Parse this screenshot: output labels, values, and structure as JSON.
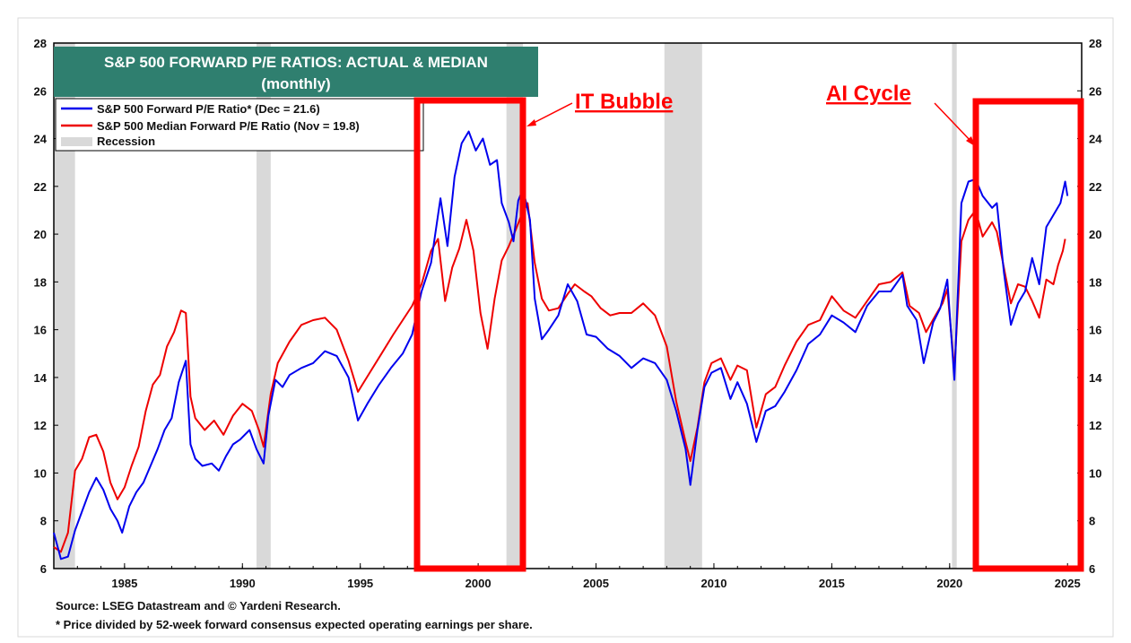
{
  "chart_data": {
    "type": "line",
    "title": "S&P 500 FORWARD P/E RATIOS: ACTUAL & MEDIAN",
    "subtitle": "(monthly)",
    "x_range": [
      1982,
      2025.6
    ],
    "ylim": [
      6,
      28
    ],
    "y_ticks": [
      "6",
      "8",
      "10",
      "12",
      "14",
      "16",
      "18",
      "20",
      "22",
      "24",
      "26",
      "28"
    ],
    "x_ticks": [
      "1985",
      "1990",
      "1995",
      "2000",
      "2005",
      "2010",
      "2015",
      "2020",
      "2025"
    ],
    "grid": false,
    "legend_position": "top-left",
    "series": [
      {
        "name": "S&P 500 Forward P/E Ratio* (Dec = 21.6)",
        "color": "#0000ee",
        "points": [
          [
            1982.0,
            7.5
          ],
          [
            1982.3,
            6.4
          ],
          [
            1982.6,
            6.5
          ],
          [
            1982.9,
            7.6
          ],
          [
            1983.2,
            8.4
          ],
          [
            1983.5,
            9.2
          ],
          [
            1983.8,
            9.8
          ],
          [
            1984.1,
            9.3
          ],
          [
            1984.4,
            8.5
          ],
          [
            1984.7,
            8.0
          ],
          [
            1984.9,
            7.5
          ],
          [
            1985.2,
            8.6
          ],
          [
            1985.5,
            9.2
          ],
          [
            1985.8,
            9.6
          ],
          [
            1986.1,
            10.3
          ],
          [
            1986.4,
            11.0
          ],
          [
            1986.7,
            11.8
          ],
          [
            1987.0,
            12.3
          ],
          [
            1987.3,
            13.8
          ],
          [
            1987.6,
            14.7
          ],
          [
            1987.8,
            11.2
          ],
          [
            1988.0,
            10.6
          ],
          [
            1988.3,
            10.3
          ],
          [
            1988.7,
            10.4
          ],
          [
            1989.0,
            10.1
          ],
          [
            1989.3,
            10.7
          ],
          [
            1989.6,
            11.2
          ],
          [
            1989.9,
            11.4
          ],
          [
            1990.3,
            11.8
          ],
          [
            1990.6,
            11.0
          ],
          [
            1990.9,
            10.4
          ],
          [
            1991.1,
            12.4
          ],
          [
            1991.4,
            13.9
          ],
          [
            1991.7,
            13.6
          ],
          [
            1992.0,
            14.1
          ],
          [
            1992.5,
            14.4
          ],
          [
            1993.0,
            14.6
          ],
          [
            1993.5,
            15.1
          ],
          [
            1994.0,
            14.9
          ],
          [
            1994.5,
            14.0
          ],
          [
            1994.9,
            12.2
          ],
          [
            1995.3,
            12.9
          ],
          [
            1995.8,
            13.7
          ],
          [
            1996.3,
            14.4
          ],
          [
            1996.8,
            15.0
          ],
          [
            1997.2,
            15.8
          ],
          [
            1997.6,
            17.6
          ],
          [
            1998.0,
            18.8
          ],
          [
            1998.4,
            21.5
          ],
          [
            1998.7,
            19.5
          ],
          [
            1999.0,
            22.4
          ],
          [
            1999.3,
            23.8
          ],
          [
            1999.6,
            24.3
          ],
          [
            1999.9,
            23.5
          ],
          [
            2000.2,
            24.0
          ],
          [
            2000.5,
            22.9
          ],
          [
            2000.8,
            23.1
          ],
          [
            2001.0,
            21.3
          ],
          [
            2001.3,
            20.5
          ],
          [
            2001.5,
            19.7
          ],
          [
            2001.7,
            21.4
          ],
          [
            2001.9,
            21.9
          ],
          [
            2002.2,
            20.6
          ],
          [
            2002.4,
            17.3
          ],
          [
            2002.7,
            15.6
          ],
          [
            2003.0,
            16.0
          ],
          [
            2003.4,
            16.6
          ],
          [
            2003.8,
            17.9
          ],
          [
            2004.2,
            17.2
          ],
          [
            2004.6,
            15.8
          ],
          [
            2005.0,
            15.7
          ],
          [
            2005.5,
            15.2
          ],
          [
            2006.0,
            14.9
          ],
          [
            2006.5,
            14.4
          ],
          [
            2007.0,
            14.8
          ],
          [
            2007.5,
            14.6
          ],
          [
            2008.0,
            13.9
          ],
          [
            2008.4,
            12.6
          ],
          [
            2008.8,
            11.0
          ],
          [
            2009.0,
            9.5
          ],
          [
            2009.3,
            11.8
          ],
          [
            2009.6,
            13.6
          ],
          [
            2009.9,
            14.2
          ],
          [
            2010.3,
            14.4
          ],
          [
            2010.7,
            13.1
          ],
          [
            2011.0,
            13.8
          ],
          [
            2011.4,
            12.9
          ],
          [
            2011.8,
            11.3
          ],
          [
            2012.2,
            12.6
          ],
          [
            2012.6,
            12.8
          ],
          [
            2013.0,
            13.4
          ],
          [
            2013.5,
            14.3
          ],
          [
            2014.0,
            15.4
          ],
          [
            2014.5,
            15.8
          ],
          [
            2015.0,
            16.6
          ],
          [
            2015.5,
            16.3
          ],
          [
            2016.0,
            15.9
          ],
          [
            2016.5,
            17.0
          ],
          [
            2017.0,
            17.6
          ],
          [
            2017.5,
            17.6
          ],
          [
            2018.0,
            18.3
          ],
          [
            2018.2,
            17.0
          ],
          [
            2018.6,
            16.4
          ],
          [
            2018.9,
            14.6
          ],
          [
            2019.3,
            16.3
          ],
          [
            2019.6,
            16.9
          ],
          [
            2019.9,
            18.1
          ],
          [
            2020.2,
            13.9
          ],
          [
            2020.5,
            21.3
          ],
          [
            2020.8,
            22.2
          ],
          [
            2021.1,
            22.3
          ],
          [
            2021.4,
            21.6
          ],
          [
            2021.8,
            21.1
          ],
          [
            2022.0,
            21.3
          ],
          [
            2022.3,
            18.4
          ],
          [
            2022.6,
            16.2
          ],
          [
            2022.9,
            17.1
          ],
          [
            2023.2,
            17.6
          ],
          [
            2023.5,
            19.0
          ],
          [
            2023.8,
            17.9
          ],
          [
            2024.1,
            20.3
          ],
          [
            2024.4,
            20.8
          ],
          [
            2024.7,
            21.3
          ],
          [
            2024.9,
            22.2
          ],
          [
            2025.0,
            21.6
          ]
        ]
      },
      {
        "name": "S&P 500 Median Forward P/E Ratio  (Nov = 19.8)",
        "color": "#ee0000",
        "points": [
          [
            1982.0,
            6.9
          ],
          [
            1982.3,
            6.7
          ],
          [
            1982.6,
            7.5
          ],
          [
            1982.9,
            10.1
          ],
          [
            1983.2,
            10.6
          ],
          [
            1983.5,
            11.5
          ],
          [
            1983.8,
            11.6
          ],
          [
            1984.1,
            10.9
          ],
          [
            1984.4,
            9.6
          ],
          [
            1984.7,
            8.9
          ],
          [
            1985.0,
            9.4
          ],
          [
            1985.3,
            10.3
          ],
          [
            1985.6,
            11.1
          ],
          [
            1985.9,
            12.6
          ],
          [
            1986.2,
            13.7
          ],
          [
            1986.5,
            14.1
          ],
          [
            1986.8,
            15.3
          ],
          [
            1987.1,
            15.9
          ],
          [
            1987.4,
            16.8
          ],
          [
            1987.6,
            16.7
          ],
          [
            1987.8,
            13.2
          ],
          [
            1988.0,
            12.3
          ],
          [
            1988.4,
            11.8
          ],
          [
            1988.8,
            12.2
          ],
          [
            1989.2,
            11.6
          ],
          [
            1989.6,
            12.4
          ],
          [
            1990.0,
            12.9
          ],
          [
            1990.4,
            12.6
          ],
          [
            1990.7,
            11.8
          ],
          [
            1990.9,
            11.1
          ],
          [
            1991.2,
            13.3
          ],
          [
            1991.5,
            14.6
          ],
          [
            1992.0,
            15.5
          ],
          [
            1992.5,
            16.2
          ],
          [
            1993.0,
            16.4
          ],
          [
            1993.5,
            16.5
          ],
          [
            1994.0,
            16.0
          ],
          [
            1994.5,
            14.7
          ],
          [
            1994.9,
            13.4
          ],
          [
            1995.4,
            14.2
          ],
          [
            1995.9,
            15.0
          ],
          [
            1996.4,
            15.8
          ],
          [
            1996.8,
            16.4
          ],
          [
            1997.2,
            17.0
          ],
          [
            1997.6,
            17.9
          ],
          [
            1998.0,
            19.3
          ],
          [
            1998.3,
            19.8
          ],
          [
            1998.6,
            17.2
          ],
          [
            1998.9,
            18.6
          ],
          [
            1999.2,
            19.4
          ],
          [
            1999.5,
            20.6
          ],
          [
            1999.8,
            19.3
          ],
          [
            2000.1,
            16.7
          ],
          [
            2000.4,
            15.2
          ],
          [
            2000.7,
            17.3
          ],
          [
            2001.0,
            18.9
          ],
          [
            2001.3,
            19.5
          ],
          [
            2001.6,
            20.2
          ],
          [
            2001.8,
            20.7
          ],
          [
            2002.1,
            21.3
          ],
          [
            2002.4,
            18.8
          ],
          [
            2002.7,
            17.3
          ],
          [
            2003.0,
            16.8
          ],
          [
            2003.4,
            16.9
          ],
          [
            2003.8,
            17.5
          ],
          [
            2004.1,
            17.9
          ],
          [
            2004.5,
            17.6
          ],
          [
            2004.8,
            17.4
          ],
          [
            2005.2,
            16.9
          ],
          [
            2005.6,
            16.6
          ],
          [
            2006.0,
            16.7
          ],
          [
            2006.5,
            16.7
          ],
          [
            2007.0,
            17.1
          ],
          [
            2007.5,
            16.6
          ],
          [
            2008.0,
            15.3
          ],
          [
            2008.4,
            13.0
          ],
          [
            2008.8,
            11.3
          ],
          [
            2009.0,
            10.5
          ],
          [
            2009.3,
            11.9
          ],
          [
            2009.6,
            13.8
          ],
          [
            2009.9,
            14.6
          ],
          [
            2010.3,
            14.8
          ],
          [
            2010.7,
            13.9
          ],
          [
            2011.0,
            14.5
          ],
          [
            2011.4,
            14.3
          ],
          [
            2011.8,
            11.9
          ],
          [
            2012.2,
            13.3
          ],
          [
            2012.6,
            13.6
          ],
          [
            2013.0,
            14.5
          ],
          [
            2013.5,
            15.5
          ],
          [
            2014.0,
            16.2
          ],
          [
            2014.5,
            16.4
          ],
          [
            2015.0,
            17.4
          ],
          [
            2015.5,
            16.8
          ],
          [
            2016.0,
            16.5
          ],
          [
            2016.5,
            17.2
          ],
          [
            2017.0,
            17.9
          ],
          [
            2017.5,
            18.0
          ],
          [
            2018.0,
            18.4
          ],
          [
            2018.3,
            17.0
          ],
          [
            2018.7,
            16.7
          ],
          [
            2019.0,
            15.9
          ],
          [
            2019.4,
            16.6
          ],
          [
            2019.7,
            17.1
          ],
          [
            2019.9,
            17.7
          ],
          [
            2020.2,
            14.3
          ],
          [
            2020.5,
            19.7
          ],
          [
            2020.8,
            20.6
          ],
          [
            2021.1,
            21.0
          ],
          [
            2021.4,
            19.9
          ],
          [
            2021.8,
            20.5
          ],
          [
            2022.0,
            20.1
          ],
          [
            2022.3,
            18.6
          ],
          [
            2022.6,
            17.1
          ],
          [
            2022.9,
            17.9
          ],
          [
            2023.2,
            17.8
          ],
          [
            2023.5,
            17.2
          ],
          [
            2023.8,
            16.5
          ],
          [
            2024.1,
            18.1
          ],
          [
            2024.4,
            17.9
          ],
          [
            2024.6,
            18.7
          ],
          [
            2024.8,
            19.3
          ],
          [
            2024.9,
            19.8
          ]
        ]
      }
    ],
    "recession_label": "Recession",
    "recessions": [
      [
        1982.0,
        1982.9
      ],
      [
        1990.6,
        1991.2
      ],
      [
        2001.2,
        2001.9
      ],
      [
        2007.9,
        2009.5
      ],
      [
        2020.1,
        2020.3
      ]
    ],
    "annotations": [
      "IT Bubble",
      "AI Cycle"
    ],
    "highlight_boxes": [
      [
        1997.5,
        2002.2
      ],
      [
        2021.3,
        2025.6
      ]
    ],
    "accent_color": "#ff0000",
    "title_bg": "#2f7f6f"
  },
  "footer": {
    "source": "Source: LSEG Datastream and © Yardeni Research.",
    "note": "* Price divided by 52-week forward consensus expected operating earnings per share."
  }
}
